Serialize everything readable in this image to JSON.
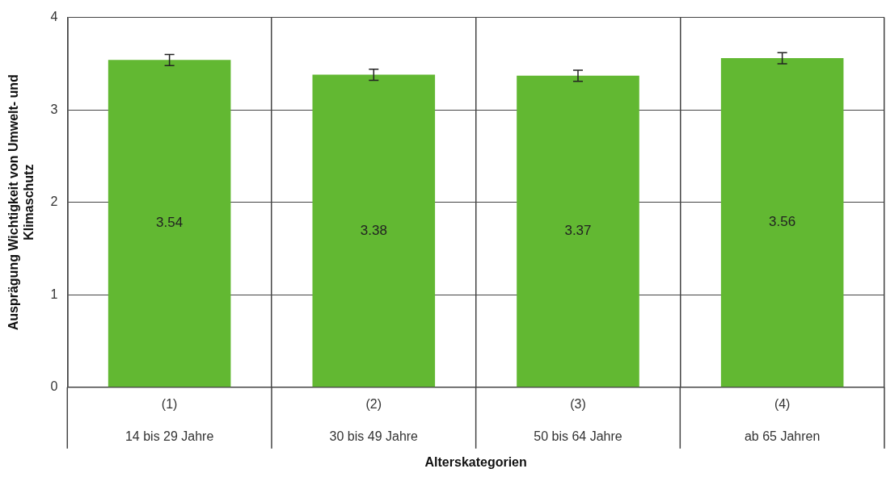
{
  "chart_data": {
    "type": "bar",
    "xlabel": "Alterskategorien",
    "ylabel": "Ausprägung Wichtigkeit von Umwelt- und\nKlimaschutz",
    "categories": [
      "(1)\n14 bis 29 Jahre",
      "(2)\n30 bis 49 Jahre",
      "(3)\n50 bis 64 Jahre",
      "(4)\nab 65 Jahren"
    ],
    "values": [
      3.54,
      3.38,
      3.37,
      3.56
    ],
    "errors": [
      0.06,
      0.06,
      0.06,
      0.06
    ],
    "color": "#62b832",
    "ylim": [
      0,
      4
    ],
    "yticks": [
      0,
      1,
      2,
      3,
      4
    ],
    "grid": true,
    "data_labels": true
  }
}
